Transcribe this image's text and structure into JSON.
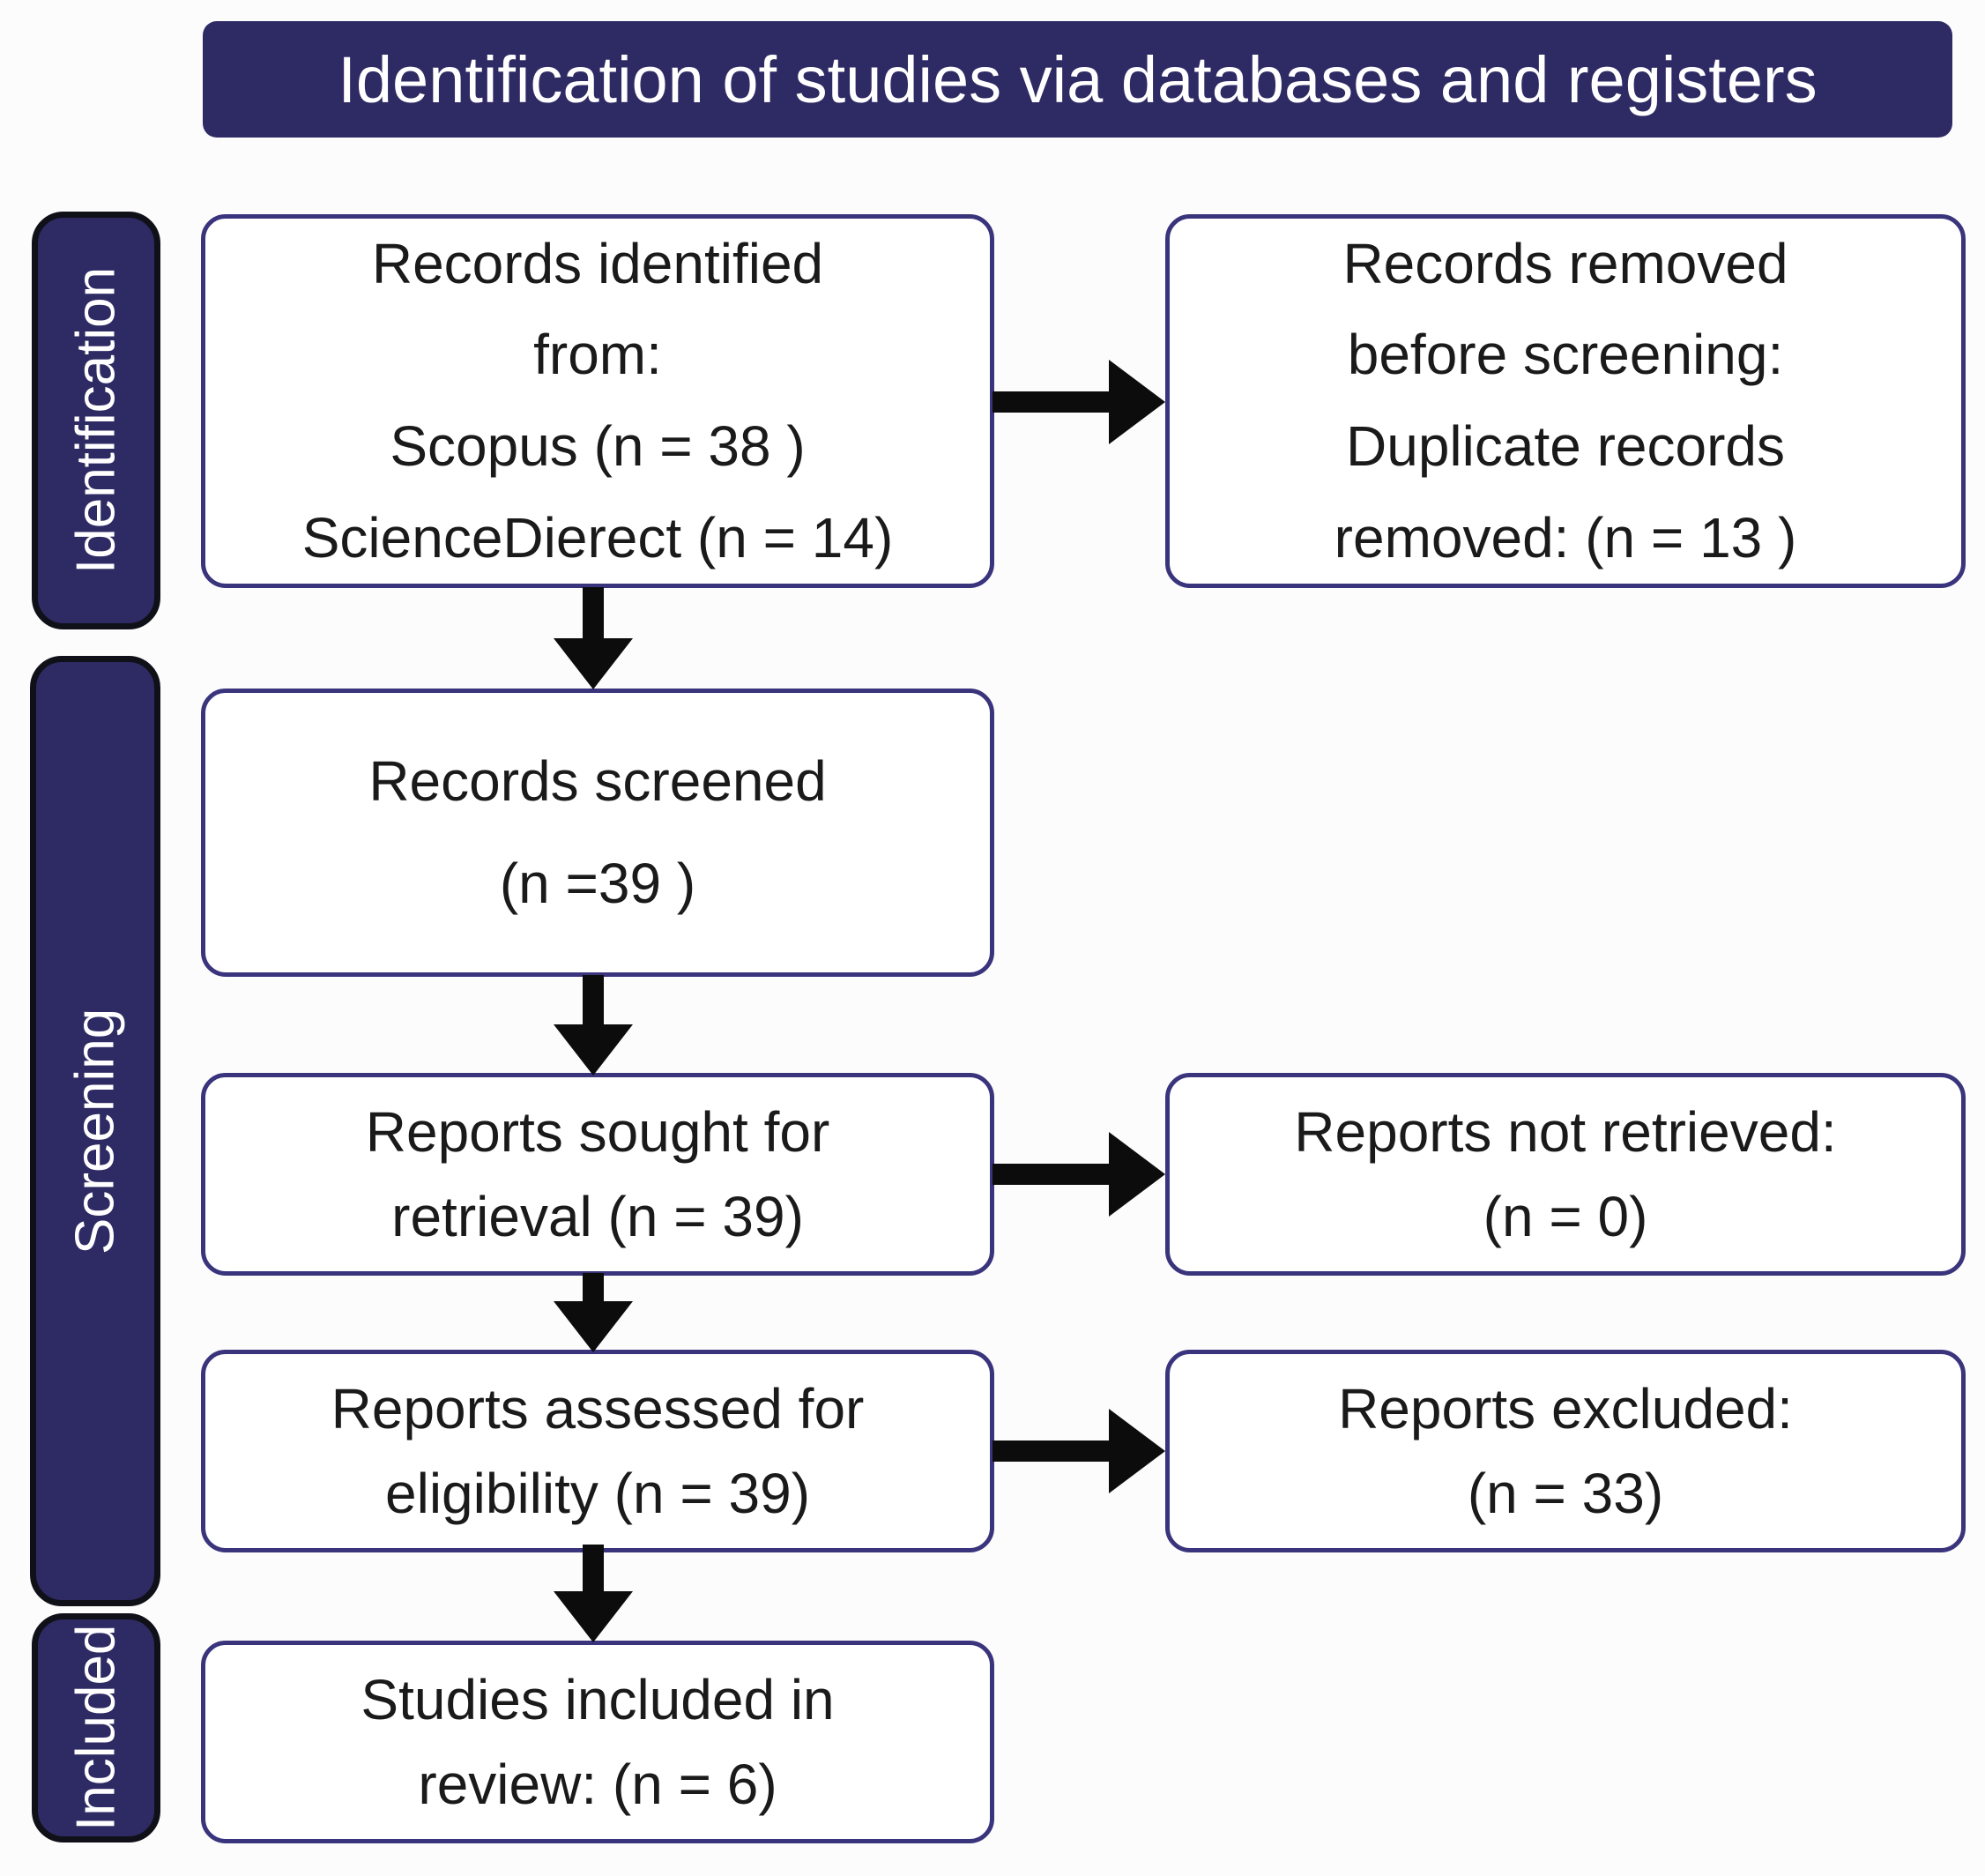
{
  "title": "Identification of studies via databases and registers",
  "colors": {
    "navy": "#2e2a64",
    "box_border": "#39347c",
    "label_border": "#101018",
    "arrow": "#0c0c0c",
    "text": "#1a1a1a"
  },
  "stages": {
    "identification": "Identification",
    "screening": "Screening",
    "included": "Included"
  },
  "boxes": {
    "records_identified": {
      "lines": [
        "Records identified",
        "from:",
        "Scopus (n = 38 )",
        "ScienceDierect (n = 14)"
      ]
    },
    "records_removed": {
      "lines": [
        "Records removed",
        "before screening:",
        "Duplicate records",
        "removed: (n = 13 )"
      ]
    },
    "records_screened": {
      "lines": [
        "Records screened",
        "(n =39 )"
      ]
    },
    "reports_sought": {
      "lines": [
        "Reports sought for",
        "retrieval (n = 39)"
      ]
    },
    "reports_not_retrieved": {
      "lines": [
        "Reports not retrieved:",
        "(n = 0)"
      ]
    },
    "reports_assessed": {
      "lines": [
        "Reports assessed for",
        "eligibility (n = 39)"
      ]
    },
    "reports_excluded": {
      "lines": [
        "Reports excluded:",
        "(n = 33)"
      ]
    },
    "studies_included": {
      "lines": [
        "Studies included in",
        "review: (n = 6)"
      ]
    }
  },
  "counts": {
    "scopus": 38,
    "sciencedirect": 14,
    "duplicates_removed": 13,
    "records_screened": 39,
    "reports_sought": 39,
    "reports_not_retrieved": 0,
    "reports_assessed": 39,
    "reports_excluded": 33,
    "studies_included": 6
  }
}
